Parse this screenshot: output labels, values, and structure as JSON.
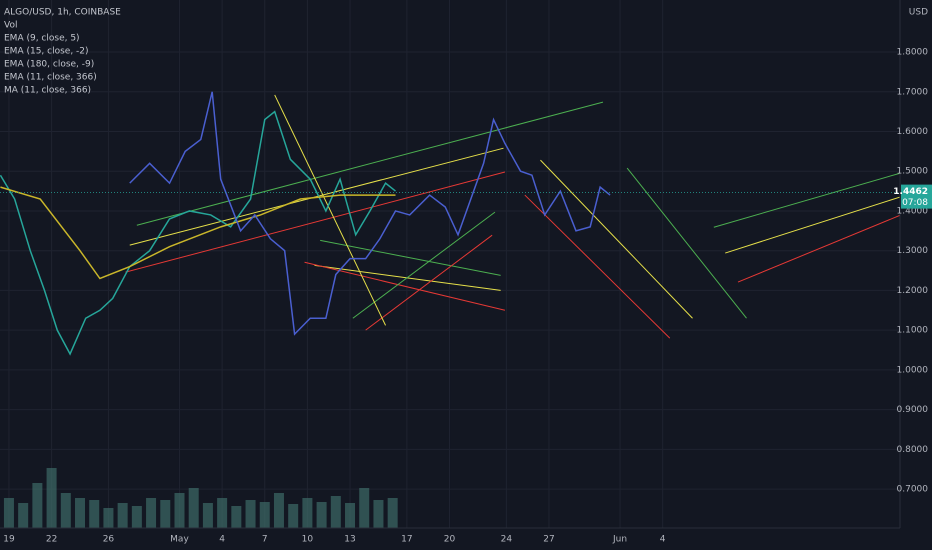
{
  "chart_data": {
    "type": "line",
    "ylim": [
      0.602,
      1.931
    ],
    "yticks": [
      {
        "value": 0.7,
        "label": "0.7000"
      },
      {
        "value": 0.8,
        "label": "0.8000"
      },
      {
        "value": 0.9,
        "label": "0.9000"
      },
      {
        "value": 1.0,
        "label": "1.0000"
      },
      {
        "value": 1.1,
        "label": "1.1000"
      },
      {
        "value": 1.2,
        "label": "1.2000"
      },
      {
        "value": 1.3,
        "label": "1.3000"
      },
      {
        "value": 1.4,
        "label": "1.4000"
      },
      {
        "value": 1.5,
        "label": "1.5000"
      },
      {
        "value": 1.6,
        "label": "1.6000"
      },
      {
        "value": 1.7,
        "label": "1.7000"
      },
      {
        "value": 1.8,
        "label": "1.8000"
      }
    ],
    "y_unit": "USD",
    "xlim": [
      -0.63,
      62.7
    ],
    "xticks": [
      {
        "value": 0,
        "label": "19"
      },
      {
        "value": 3,
        "label": "22"
      },
      {
        "value": 7,
        "label": "26"
      },
      {
        "value": 12,
        "label": "May"
      },
      {
        "value": 15,
        "label": "4"
      },
      {
        "value": 18,
        "label": "7"
      },
      {
        "value": 21,
        "label": "10"
      },
      {
        "value": 24,
        "label": "13"
      },
      {
        "value": 28,
        "label": "17"
      },
      {
        "value": 31,
        "label": "20"
      },
      {
        "value": 35,
        "label": "24"
      },
      {
        "value": 38,
        "label": "27"
      },
      {
        "value": 43,
        "label": "Jun"
      },
      {
        "value": 46,
        "label": "4"
      }
    ],
    "grid": true,
    "series": [
      {
        "name": "ALGO/USD, 1h, COINBASE",
        "color": "#26a69a",
        "x": [
          -0.6,
          0.4,
          1.5,
          2.5,
          3.4,
          4.3,
          5.4,
          6.4,
          7.3,
          8.5,
          9.9,
          11.3,
          12.7,
          14.2,
          15.6,
          17.0,
          18.0,
          18.7,
          19.8,
          21.2,
          22.3,
          23.3,
          24.4,
          25.4,
          26.5,
          27.2
        ],
        "values": [
          1.49,
          1.43,
          1.3,
          1.2,
          1.1,
          1.04,
          1.13,
          1.15,
          1.18,
          1.26,
          1.3,
          1.38,
          1.4,
          1.39,
          1.36,
          1.43,
          1.63,
          1.65,
          1.53,
          1.48,
          1.4,
          1.48,
          1.34,
          1.4,
          1.47,
          1.45
        ]
      },
      {
        "name": "EMA (180, close, -9)",
        "color": "#c9b62a",
        "x": [
          -0.6,
          2.2,
          5.0,
          6.4,
          8.5,
          11.3,
          14.9,
          17.7,
          20.5,
          23.3,
          27.2
        ],
        "values": [
          1.46,
          1.43,
          1.3,
          1.23,
          1.26,
          1.31,
          1.36,
          1.39,
          1.43,
          1.44,
          1.44
        ]
      },
      {
        "name": "MA (11, close, 366)",
        "color": "#4a5fd0",
        "x": [
          8.5,
          9.9,
          11.3,
          12.4,
          13.5,
          14.3,
          14.9,
          16.3,
          17.3,
          18.4,
          19.4,
          20.1,
          21.2,
          22.3,
          23.0,
          24.0,
          25.1,
          26.1,
          27.2,
          28.2,
          29.6,
          30.7,
          31.6,
          32.5,
          33.4,
          34.1,
          34.9,
          36.0,
          36.8,
          37.7,
          38.8,
          39.9,
          40.9,
          41.6,
          42.3
        ],
        "values": [
          1.47,
          1.52,
          1.47,
          1.55,
          1.58,
          1.7,
          1.48,
          1.35,
          1.39,
          1.33,
          1.3,
          1.09,
          1.13,
          1.13,
          1.24,
          1.28,
          1.28,
          1.33,
          1.4,
          1.39,
          1.44,
          1.41,
          1.34,
          1.43,
          1.52,
          1.63,
          1.57,
          1.5,
          1.49,
          1.39,
          1.45,
          1.35,
          1.36,
          1.46,
          1.44
        ]
      }
    ],
    "legend_items": [
      "EMA (9, close, 5)",
      "EMA (15, close, -2)",
      "EMA (11, close, 366)"
    ],
    "volume": {
      "name": "Vol",
      "color": "#3d6b66",
      "vlim": [
        0,
        100
      ],
      "x": [
        0,
        1,
        2,
        3,
        4,
        5,
        6,
        7,
        8,
        9,
        10,
        11,
        12,
        13,
        14,
        15,
        16,
        17,
        18,
        19,
        20,
        21,
        22,
        23,
        24,
        25,
        26,
        27
      ],
      "values": [
        30,
        25,
        45,
        60,
        35,
        30,
        28,
        20,
        25,
        22,
        30,
        28,
        35,
        40,
        25,
        30,
        22,
        28,
        26,
        35,
        24,
        30,
        26,
        32,
        25,
        40,
        28,
        30
      ]
    },
    "trendlines": [
      {
        "color": "#4caf50",
        "x": [
          9.0,
          41.8
        ],
        "values": [
          1.364,
          1.674
        ]
      },
      {
        "color": "#e6e04a",
        "x": [
          8.5,
          34.8
        ],
        "values": [
          1.314,
          1.558
        ]
      },
      {
        "color": "#e53935",
        "x": [
          8.2,
          34.9
        ],
        "values": [
          1.246,
          1.498
        ]
      },
      {
        "color": "#e6e04a",
        "x": [
          37.4,
          48.1
        ],
        "values": [
          1.528,
          1.13
        ]
      },
      {
        "color": "#e53935",
        "x": [
          36.3,
          46.5
        ],
        "values": [
          1.44,
          1.08
        ]
      },
      {
        "color": "#4caf50",
        "x": [
          43.5,
          51.9
        ],
        "values": [
          1.508,
          1.13
        ]
      },
      {
        "color": "#4caf50",
        "x": [
          49.6,
          62.7
        ],
        "values": [
          1.359,
          1.495
        ]
      },
      {
        "color": "#e6e04a",
        "x": [
          50.4,
          62.7
        ],
        "values": [
          1.294,
          1.435
        ]
      },
      {
        "color": "#e53935",
        "x": [
          51.3,
          62.7
        ],
        "values": [
          1.221,
          1.389
        ]
      },
      {
        "color": "#4caf50",
        "x": [
          21.9,
          34.6
        ],
        "values": [
          1.326,
          1.238
        ]
      },
      {
        "color": "#e6e04a",
        "x": [
          21.5,
          34.6
        ],
        "values": [
          1.263,
          1.2
        ]
      },
      {
        "color": "#e53935",
        "x": [
          20.8,
          34.9
        ],
        "values": [
          1.271,
          1.15
        ]
      },
      {
        "color": "#4caf50",
        "x": [
          24.2,
          34.2
        ],
        "values": [
          1.13,
          1.397
        ]
      },
      {
        "color": "#e53935",
        "x": [
          25.1,
          34.0
        ],
        "values": [
          1.1,
          1.339
        ]
      },
      {
        "color": "#e6e04a",
        "x": [
          18.7,
          26.5
        ],
        "values": [
          1.692,
          1.112
        ]
      }
    ],
    "last_price": {
      "value": 1.4462,
      "label": "1.4462",
      "countdown": "07:08",
      "color": "#26a69a"
    }
  }
}
